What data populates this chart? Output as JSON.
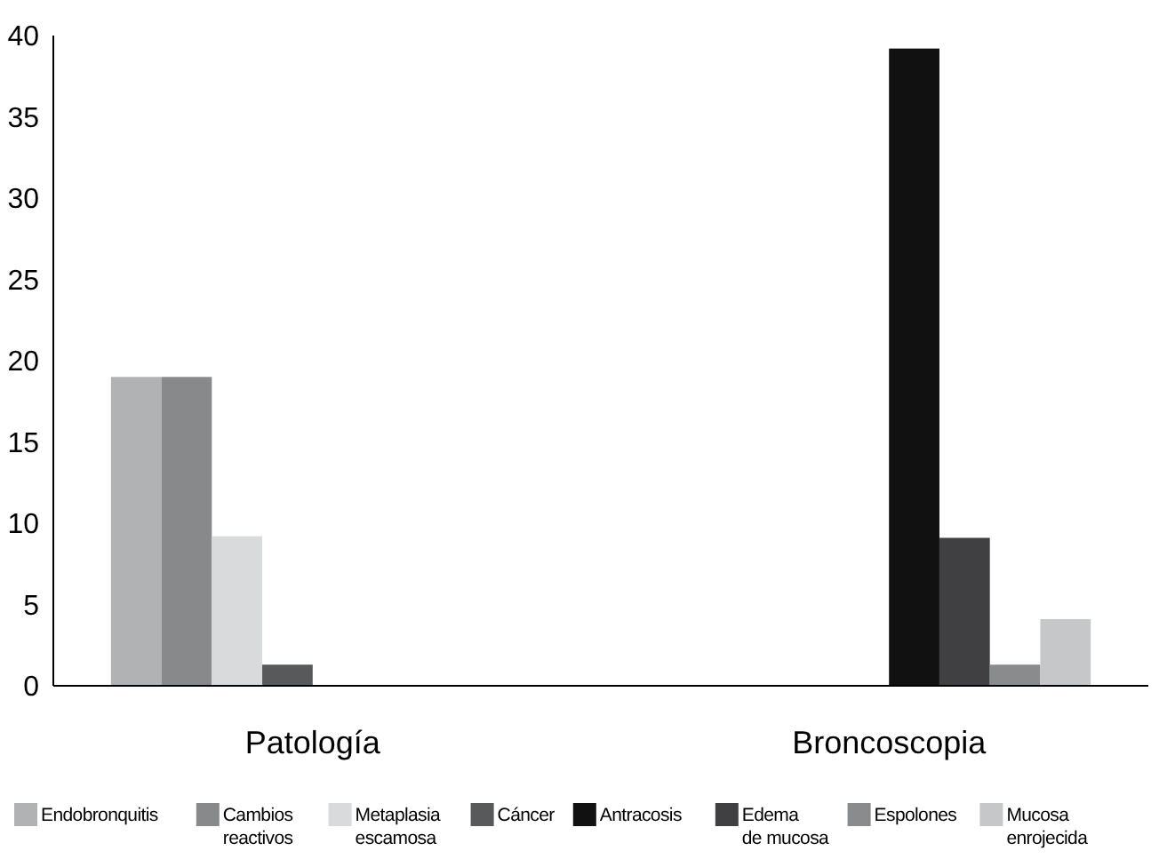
{
  "chart_data": {
    "type": "bar",
    "categories": [
      "Patología",
      "Broncoscopia"
    ],
    "ylim": [
      0,
      40
    ],
    "yticks": [
      0,
      5,
      10,
      15,
      20,
      25,
      30,
      35,
      40
    ],
    "grid": false,
    "legend": "bottom",
    "series": [
      {
        "name": "Endobronquitis",
        "color": "#b1b2b4",
        "values": [
          19,
          null
        ]
      },
      {
        "name": "Cambios reactivos",
        "color": "#88898b",
        "values": [
          19,
          null
        ]
      },
      {
        "name": "Metaplasia escamosa",
        "color": "#d9dadc",
        "values": [
          9.2,
          null
        ]
      },
      {
        "name": "Cáncer",
        "color": "#58595b",
        "values": [
          1.3,
          null
        ]
      },
      {
        "name": "Antracosis",
        "color": "#111111",
        "values": [
          null,
          39.2
        ]
      },
      {
        "name": "Edema de mucosa",
        "color": "#404042",
        "values": [
          null,
          9.1
        ]
      },
      {
        "name": "Espolones",
        "color": "#8a8b8d",
        "values": [
          null,
          1.3
        ]
      },
      {
        "name": "Mucosa enrojecida",
        "color": "#c6c7c9",
        "values": [
          null,
          4.1
        ]
      }
    ]
  }
}
